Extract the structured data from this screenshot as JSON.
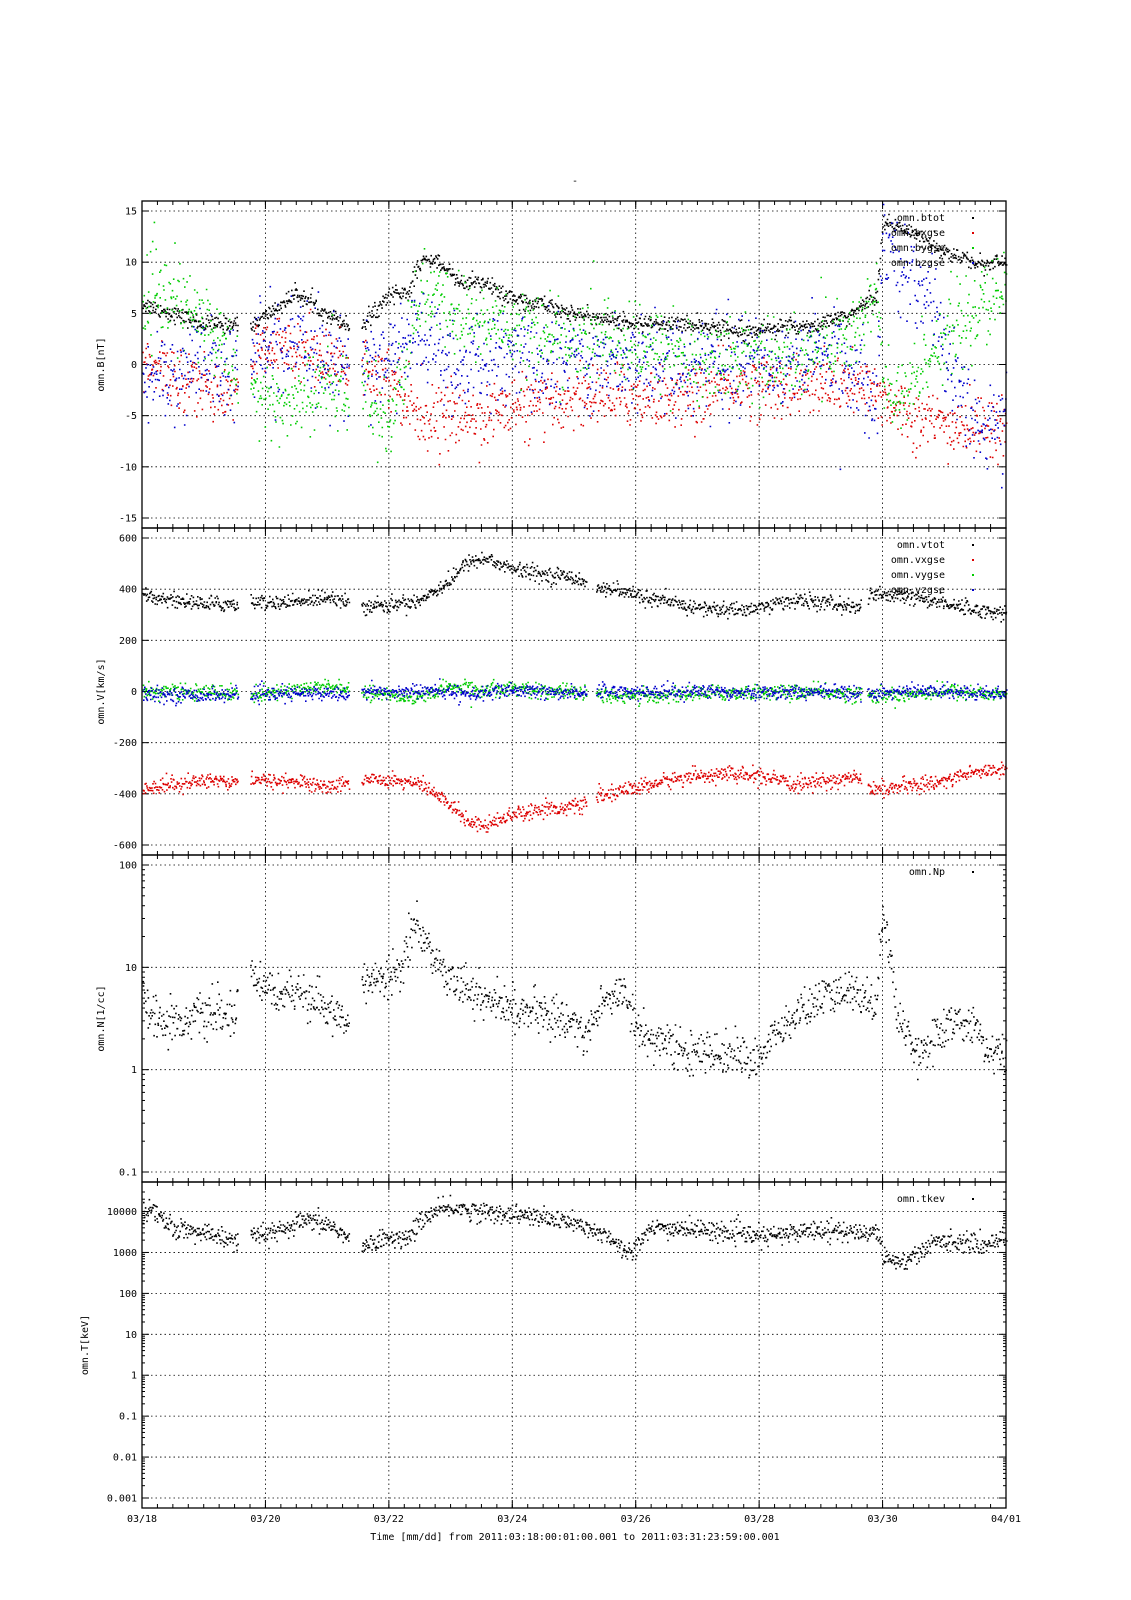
{
  "figure": {
    "title": "-",
    "xlabel": "Time [mm/dd]  from 2011:03:18:00:01:00.001  to  2011:03:31:23:59:00.001",
    "x_ticks": [
      "03/18",
      "03/20",
      "03/22",
      "03/24",
      "03/26",
      "03/28",
      "03/30",
      "04/01"
    ]
  },
  "chart_data": [
    {
      "type": "scatter",
      "ylabel": "omn.B[nT]",
      "ylim": [
        -15,
        15
      ],
      "yscale": "linear",
      "xlim": [
        0,
        14
      ],
      "y_ticks": [
        "15",
        "10",
        "5",
        "0",
        "-5",
        "-10",
        "-15"
      ],
      "grid": true,
      "legend_position": "top-right",
      "gaps": [
        [
          1.55,
          1.75
        ],
        [
          3.35,
          3.55
        ]
      ],
      "series": [
        {
          "name": "omn.btot",
          "color": "#000000",
          "spread": 0.4,
          "x": [
            0,
            0.5,
            1.0,
            1.5,
            1.8,
            2.5,
            3.0,
            3.3,
            3.6,
            4.0,
            4.3,
            4.5,
            4.7,
            5.2,
            5.5,
            6.0,
            6.5,
            7.0,
            7.5,
            8.0,
            8.5,
            9.0,
            9.5,
            10.0,
            11.0,
            11.5,
            11.9,
            12.0,
            12.5,
            13.0,
            13.5,
            14.0
          ],
          "y": [
            6,
            5,
            4,
            4,
            4,
            7,
            5,
            4,
            4,
            7,
            7,
            10,
            10.5,
            8,
            8,
            6.5,
            6,
            5,
            4.5,
            4,
            4,
            4,
            3.5,
            3.5,
            4,
            5,
            7,
            14,
            13,
            11,
            10,
            10
          ]
        },
        {
          "name": "omn.bxgse",
          "color": "#dd0000",
          "spread": 1.5,
          "x": [
            0,
            0.5,
            1.0,
            1.5,
            1.8,
            2.5,
            3.0,
            3.3,
            3.6,
            4.0,
            4.5,
            5.0,
            5.5,
            6.0,
            6.5,
            7.0,
            7.5,
            8.0,
            8.5,
            9.0,
            9.5,
            10.0,
            10.5,
            11.0,
            11.5,
            12.0,
            12.5,
            13.0,
            13.5,
            14.0
          ],
          "y": [
            0,
            -1,
            -2,
            -3,
            1,
            2,
            1,
            -1,
            0,
            -1,
            -5,
            -5,
            -5,
            -4,
            -4,
            -3,
            -3,
            -3,
            -3,
            -3,
            -2,
            -2,
            -2,
            -2,
            -2,
            -3,
            -5,
            -6,
            -6,
            -6
          ]
        },
        {
          "name": "omn.bygse",
          "color": "#00cc00",
          "spread": 2.0,
          "x": [
            0,
            0.3,
            0.6,
            1.0,
            1.3,
            1.55,
            1.8,
            2.2,
            2.6,
            3.0,
            3.3,
            3.6,
            4.0,
            4.5,
            5.0,
            5.5,
            6.0,
            6.5,
            7.0,
            7.5,
            8.0,
            8.5,
            9.0,
            9.5,
            10.0,
            10.5,
            11.0,
            11.5,
            11.9,
            12.0,
            12.3,
            12.8,
            13.3,
            13.7,
            14.0
          ],
          "y": [
            6,
            6.5,
            6,
            4,
            2,
            0,
            -3,
            -4,
            -3,
            -2,
            -3,
            -3,
            -6,
            7,
            5,
            4,
            4,
            3,
            2,
            3,
            1,
            2,
            0,
            1,
            1,
            0,
            2,
            3,
            7,
            -2,
            -4,
            2,
            4,
            6,
            7
          ]
        },
        {
          "name": "omn.bzgse",
          "color": "#0000cc",
          "spread": 2.2,
          "x": [
            0,
            0.5,
            1.0,
            1.5,
            1.8,
            2.3,
            2.7,
            3.0,
            3.3,
            3.6,
            4.0,
            4.5,
            5.0,
            5.5,
            6.0,
            6.5,
            7.0,
            7.5,
            8.0,
            8.5,
            9.0,
            9.5,
            10.0,
            10.5,
            11.0,
            11.5,
            11.9,
            12.0,
            12.2,
            12.5,
            12.8,
            13.0,
            13.3,
            13.6,
            14.0
          ],
          "y": [
            -1,
            -1,
            0,
            -1,
            2,
            1,
            2,
            0,
            0,
            0,
            1,
            3,
            0,
            0,
            1,
            0,
            1,
            0,
            1,
            0,
            0,
            0,
            1,
            0,
            1,
            0,
            -3,
            14,
            10,
            8,
            6,
            2,
            -3,
            -6,
            -7
          ]
        }
      ]
    },
    {
      "type": "scatter",
      "ylabel": "omn.V[km/s]",
      "ylim": [
        -600,
        600
      ],
      "yscale": "linear",
      "xlim": [
        0,
        14
      ],
      "y_ticks": [
        "600",
        "400",
        "200",
        "0",
        "-200",
        "-400",
        "-600"
      ],
      "grid": true,
      "legend_position": "top-right",
      "gaps": [
        [
          1.55,
          1.75
        ],
        [
          3.35,
          3.55
        ],
        [
          7.2,
          7.35
        ],
        [
          11.65,
          11.75
        ]
      ],
      "series": [
        {
          "name": "omn.vtot",
          "color": "#000000",
          "spread": 15,
          "x": [
            0,
            0.5,
            1.0,
            1.5,
            2.0,
            2.5,
            3.0,
            3.3,
            3.6,
            4.0,
            4.5,
            5.0,
            5.3,
            5.6,
            6.0,
            6.5,
            7.0,
            7.2,
            7.4,
            8.0,
            8.5,
            9.0,
            9.5,
            10.0,
            10.5,
            11.0,
            11.6,
            11.8,
            12.5,
            13.0,
            13.5,
            14.0
          ],
          "y": [
            380,
            360,
            345,
            345,
            350,
            350,
            375,
            360,
            340,
            340,
            360,
            440,
            515,
            520,
            480,
            460,
            450,
            430,
            410,
            380,
            350,
            330,
            320,
            330,
            360,
            350,
            330,
            380,
            370,
            350,
            320,
            310
          ]
        },
        {
          "name": "omn.vxgse",
          "color": "#dd0000",
          "spread": 15,
          "x": [
            0,
            0.5,
            1.0,
            1.5,
            2.0,
            2.5,
            3.0,
            3.3,
            3.6,
            4.0,
            4.5,
            5.0,
            5.3,
            5.6,
            6.0,
            6.5,
            7.0,
            7.2,
            7.4,
            8.0,
            8.5,
            9.0,
            9.5,
            10.0,
            10.5,
            11.0,
            11.6,
            11.8,
            12.5,
            13.0,
            13.5,
            14.0
          ],
          "y": [
            -380,
            -360,
            -345,
            -345,
            -345,
            -350,
            -370,
            -355,
            -340,
            -340,
            -360,
            -440,
            -510,
            -515,
            -475,
            -455,
            -450,
            -430,
            -405,
            -375,
            -345,
            -325,
            -320,
            -330,
            -360,
            -350,
            -330,
            -380,
            -365,
            -345,
            -310,
            -300
          ]
        },
        {
          "name": "omn.vygse",
          "color": "#00cc00",
          "spread": 15,
          "x": [
            0,
            1.0,
            2.0,
            2.5,
            3.0,
            3.6,
            4.0,
            4.5,
            5.0,
            5.5,
            6.0,
            6.5,
            7.0,
            7.5,
            8.0,
            8.5,
            9.0,
            10.0,
            11.0,
            12.0,
            13.0,
            14.0
          ],
          "y": [
            5,
            0,
            -5,
            10,
            25,
            0,
            -10,
            -20,
            20,
            10,
            20,
            0,
            5,
            -10,
            -20,
            -10,
            -5,
            0,
            0,
            -15,
            5,
            -10
          ]
        },
        {
          "name": "omn.vzgse",
          "color": "#0000cc",
          "spread": 14,
          "x": [
            0,
            1.0,
            2.0,
            2.5,
            3.0,
            3.6,
            4.0,
            4.5,
            5.0,
            5.5,
            6.0,
            6.5,
            7.0,
            7.5,
            8.0,
            8.5,
            9.0,
            10.0,
            11.0,
            12.0,
            13.0,
            14.0
          ],
          "y": [
            -10,
            -10,
            -10,
            -5,
            -5,
            0,
            0,
            5,
            0,
            -5,
            5,
            0,
            0,
            5,
            0,
            0,
            5,
            0,
            0,
            0,
            5,
            -5
          ]
        }
      ]
    },
    {
      "type": "scatter",
      "ylabel": "omn.N[1/cc]",
      "ylim": [
        0.1,
        100
      ],
      "yscale": "log",
      "xlim": [
        0,
        14
      ],
      "y_ticks": [
        "100",
        "10",
        "1",
        "0.1"
      ],
      "grid": true,
      "legend_position": "top-right",
      "gaps": [
        [
          1.55,
          1.75
        ],
        [
          3.35,
          3.55
        ]
      ],
      "series": [
        {
          "name": "omn.Np",
          "color": "#000000",
          "spread": 0.1,
          "x": [
            0,
            0.3,
            0.6,
            1.0,
            1.5,
            1.6,
            1.8,
            2.2,
            2.6,
            3.0,
            3.3,
            3.6,
            4.0,
            4.2,
            4.4,
            4.6,
            5.0,
            5.5,
            6.0,
            6.5,
            7.0,
            7.2,
            7.5,
            7.8,
            8.0,
            8.3,
            8.8,
            9.3,
            10.0,
            10.5,
            11.0,
            11.5,
            11.7,
            11.9,
            12.0,
            12.2,
            12.4,
            12.6,
            13.0,
            13.4,
            13.5,
            13.7,
            14.0
          ],
          "y": [
            5,
            3,
            3,
            3.5,
            3.5,
            8,
            8,
            6,
            5,
            4,
            3,
            7,
            8,
            10,
            28,
            15,
            8,
            5,
            4,
            3.5,
            3,
            2,
            5,
            6,
            2.5,
            2,
            1.5,
            1.5,
            1.3,
            3,
            5,
            6,
            5,
            5,
            28,
            4,
            2,
            1.5,
            2.5,
            3,
            3,
            1.3,
            1.5
          ]
        }
      ]
    },
    {
      "type": "scatter",
      "ylabel": "omn.T[keV]",
      "ylim": [
        0.001,
        30000
      ],
      "yscale": "log",
      "xlim": [
        0,
        14
      ],
      "y_ticks": [
        "10000",
        "1000",
        "100",
        "10",
        "1",
        "0.1",
        "0.01",
        "0.001"
      ],
      "grid": true,
      "legend_position": "top-right",
      "gaps": [
        [
          1.55,
          1.75
        ],
        [
          3.35,
          3.55
        ]
      ],
      "series": [
        {
          "name": "omn.tkev",
          "color": "#000000",
          "spread": 0.12,
          "x": [
            0,
            0.5,
            1.0,
            1.5,
            1.8,
            2.3,
            2.6,
            3.0,
            3.3,
            3.6,
            4.0,
            4.3,
            4.6,
            5.0,
            5.5,
            6.0,
            6.5,
            7.0,
            7.2,
            7.5,
            7.8,
            8.0,
            8.3,
            8.8,
            9.3,
            10.0,
            10.5,
            11.0,
            11.5,
            11.9,
            12.0,
            12.3,
            12.6,
            12.9,
            13.2,
            13.6,
            14.0
          ],
          "y": [
            12000,
            4000,
            3000,
            2000,
            2500,
            3500,
            6000,
            5000,
            2500,
            1500,
            2500,
            2000,
            8000,
            13000,
            10000,
            9000,
            7000,
            5500,
            3500,
            3000,
            1000,
            1500,
            4000,
            4000,
            3500,
            2500,
            3000,
            4000,
            3000,
            3500,
            800,
            600,
            1000,
            2000,
            2000,
            1500,
            2500
          ]
        }
      ]
    }
  ]
}
